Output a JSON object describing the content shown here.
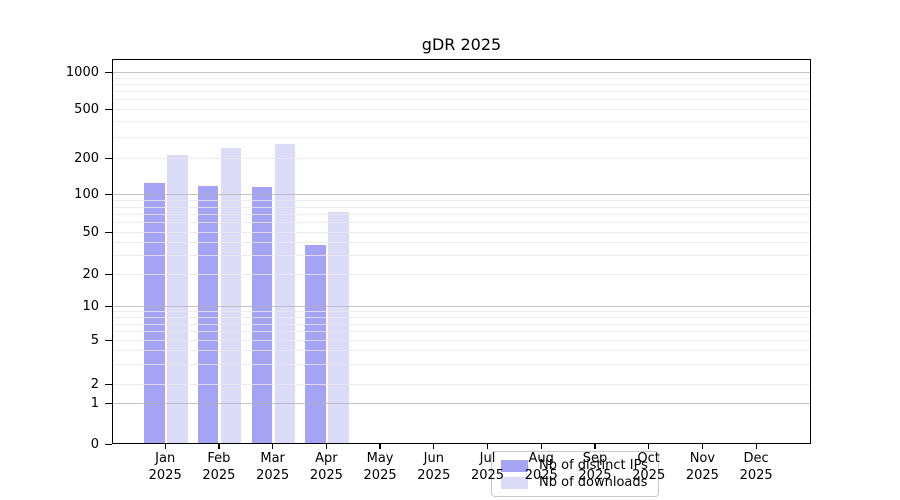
{
  "title": "gDR 2025",
  "chart_data": {
    "type": "bar",
    "title": "gDR 2025",
    "categories": [
      "Jan",
      "Feb",
      "Mar",
      "Apr",
      "May",
      "Jun",
      "Jul",
      "Aug",
      "Sep",
      "Oct",
      "Nov",
      "Dec"
    ],
    "year": "2025",
    "series": [
      {
        "name": "Nb of distinct IPs",
        "color": "#a5a4f4",
        "values": [
          125,
          118,
          116,
          38,
          0,
          0,
          0,
          0,
          0,
          0,
          0,
          0
        ]
      },
      {
        "name": "Nb of downloads",
        "color": "#dcdcf9",
        "values": [
          215,
          242,
          260,
          72,
          0,
          0,
          0,
          0,
          0,
          0,
          0,
          0
        ]
      }
    ],
    "xlabel": "",
    "ylabel": "",
    "yscale": "log-with-zero",
    "y_ticks": [
      0,
      1,
      2,
      5,
      10,
      20,
      50,
      100,
      200,
      500,
      1000
    ],
    "ylim": [
      0,
      1300
    ],
    "grid": "horizontal",
    "legend_position": "lower-center-inside",
    "colors": {
      "grid_minor": "#e8e8e8",
      "grid_major": "#b0b0b0",
      "axis": "#000000"
    }
  }
}
